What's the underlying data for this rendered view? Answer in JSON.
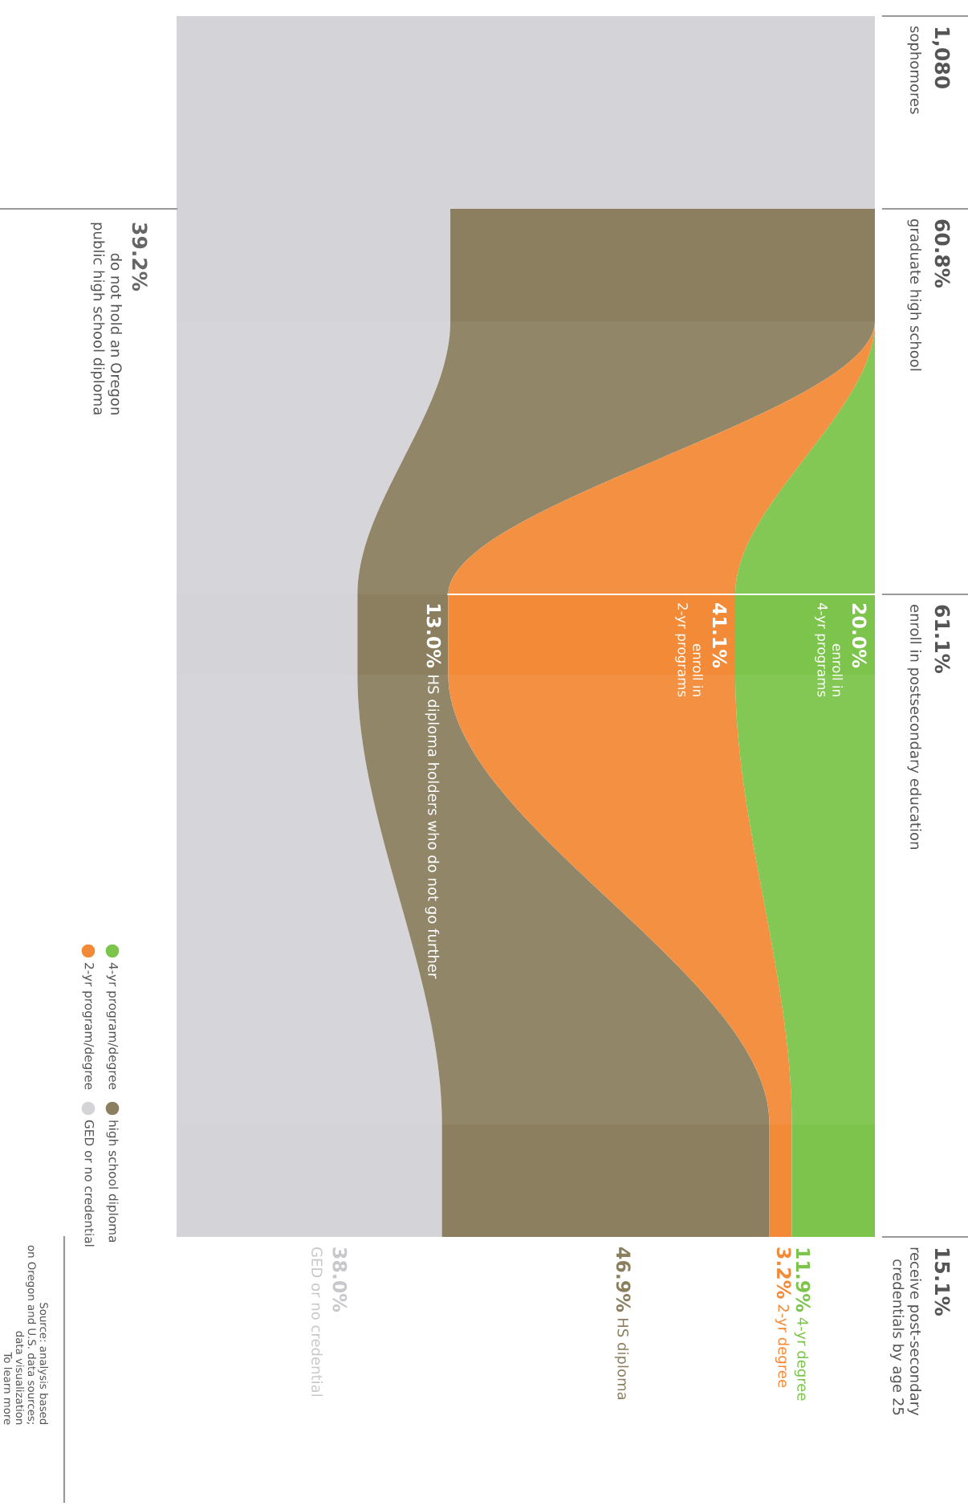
{
  "chart_data": {
    "type": "other",
    "categories": [
      "sophomores",
      "graduate high school",
      "enroll in postsecondary education",
      "receive post-secondary\ncredentials by age 25"
    ],
    "totals": [
      "1,080",
      null,
      "61.1%",
      "15.1%"
    ],
    "series": [
      {
        "name": "GED or no credential",
        "color": "#d4d4d8",
        "values": [
          null,
          39.2,
          null,
          38.0
        ],
        "value_labels": [
          null,
          "39.2%",
          null,
          "38.0%"
        ]
      },
      {
        "name": "high school diploma",
        "color": "#8b7f60",
        "values": [
          null,
          60.8,
          13.0,
          46.9
        ],
        "value_labels": [
          null,
          "60.8%",
          "13.0%",
          "46.9%"
        ]
      },
      {
        "name": "2-yr program/degree",
        "color": "#f28a38",
        "values": [
          null,
          null,
          41.1,
          3.2
        ],
        "value_labels": [
          null,
          null,
          "41.1%",
          "3.2%"
        ]
      },
      {
        "name": "4-yr program/degree",
        "color": "#7cc44c",
        "values": [
          null,
          null,
          20.0,
          11.9
        ],
        "value_labels": [
          null,
          null,
          "20.0%",
          "11.9%"
        ]
      }
    ],
    "annotations": [
      "do not hold an Oregon\npublic high school diploma",
      "enroll in\n2-yr programs",
      "enroll in\n4-yr programs",
      "HS diploma holders who do not go further",
      "GED or no credential",
      "HS diploma",
      "2-yr degree",
      "4-yr degree",
      "Source: analysis based\non Oregon and U.S. data sources;\ndata visualization\nTo learn more"
    ],
    "legend": "bottom left"
  }
}
